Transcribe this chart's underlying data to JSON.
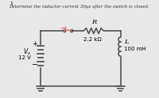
{
  "title": "Determine the inductor current 30µs after the switch is closed.",
  "bg_color": "#e8e8e8",
  "R_label": "R",
  "R_value": "2.2 kΩ",
  "L_label": "L",
  "L_value": "100 mH",
  "Vs_label": "V_s",
  "Vs_value": "12 V",
  "fig_width": 2.0,
  "fig_height": 1.24,
  "dpi": 100
}
